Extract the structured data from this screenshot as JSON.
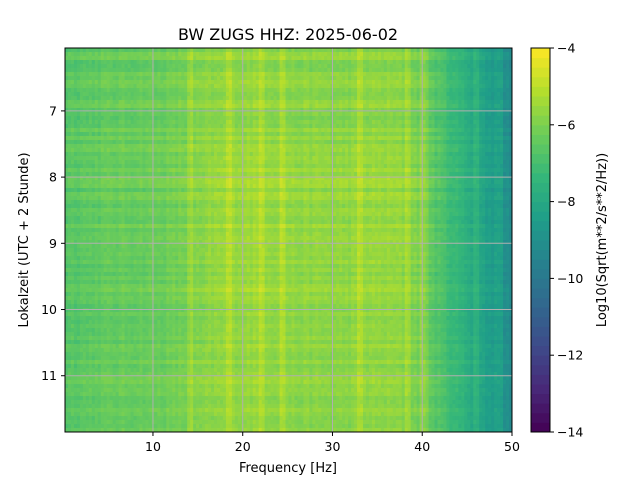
{
  "chart_data": {
    "type": "heatmap",
    "title": "BW ZUGS  HHZ: 2025-06-02",
    "xlabel": "Frequency [Hz]",
    "ylabel": "Lokalzeit (UTC + 2 Stunde)",
    "colorbar_label": "Log10(Sqrt(m**2/s**2/Hz))",
    "xlim": [
      0.2,
      50
    ],
    "ylim": [
      6.05,
      11.85
    ],
    "y_inverted": true,
    "x_ticks": [
      10,
      20,
      30,
      40,
      50
    ],
    "y_ticks": [
      7,
      8,
      9,
      10,
      11
    ],
    "colorbar_range": [
      -14,
      -4
    ],
    "colorbar_ticks": [
      -4,
      -6,
      -8,
      -10,
      -12,
      -14
    ],
    "colormap": "viridis",
    "grid": true,
    "grid_color": "#b0b0b0",
    "spectral_profile": {
      "frequency_hz": [
        0,
        5,
        8,
        10,
        12,
        14,
        16,
        18,
        20,
        22,
        24,
        26,
        28,
        30,
        32,
        34,
        36,
        38,
        40,
        42,
        44,
        46,
        48,
        50
      ],
      "log10_amplitude": [
        -6.6,
        -6.4,
        -6.3,
        -6.3,
        -6.2,
        -6.0,
        -5.8,
        -5.7,
        -5.6,
        -5.6,
        -5.7,
        -5.8,
        -5.8,
        -5.8,
        -5.8,
        -5.7,
        -5.7,
        -5.8,
        -6.2,
        -6.8,
        -7.4,
        -8.0,
        -8.6,
        -9.2
      ]
    },
    "notable_lines_hz": [
      14.0,
      18.5,
      22.0,
      24.5,
      33.0,
      38.5,
      40.2,
      46.0,
      48.5
    ]
  }
}
